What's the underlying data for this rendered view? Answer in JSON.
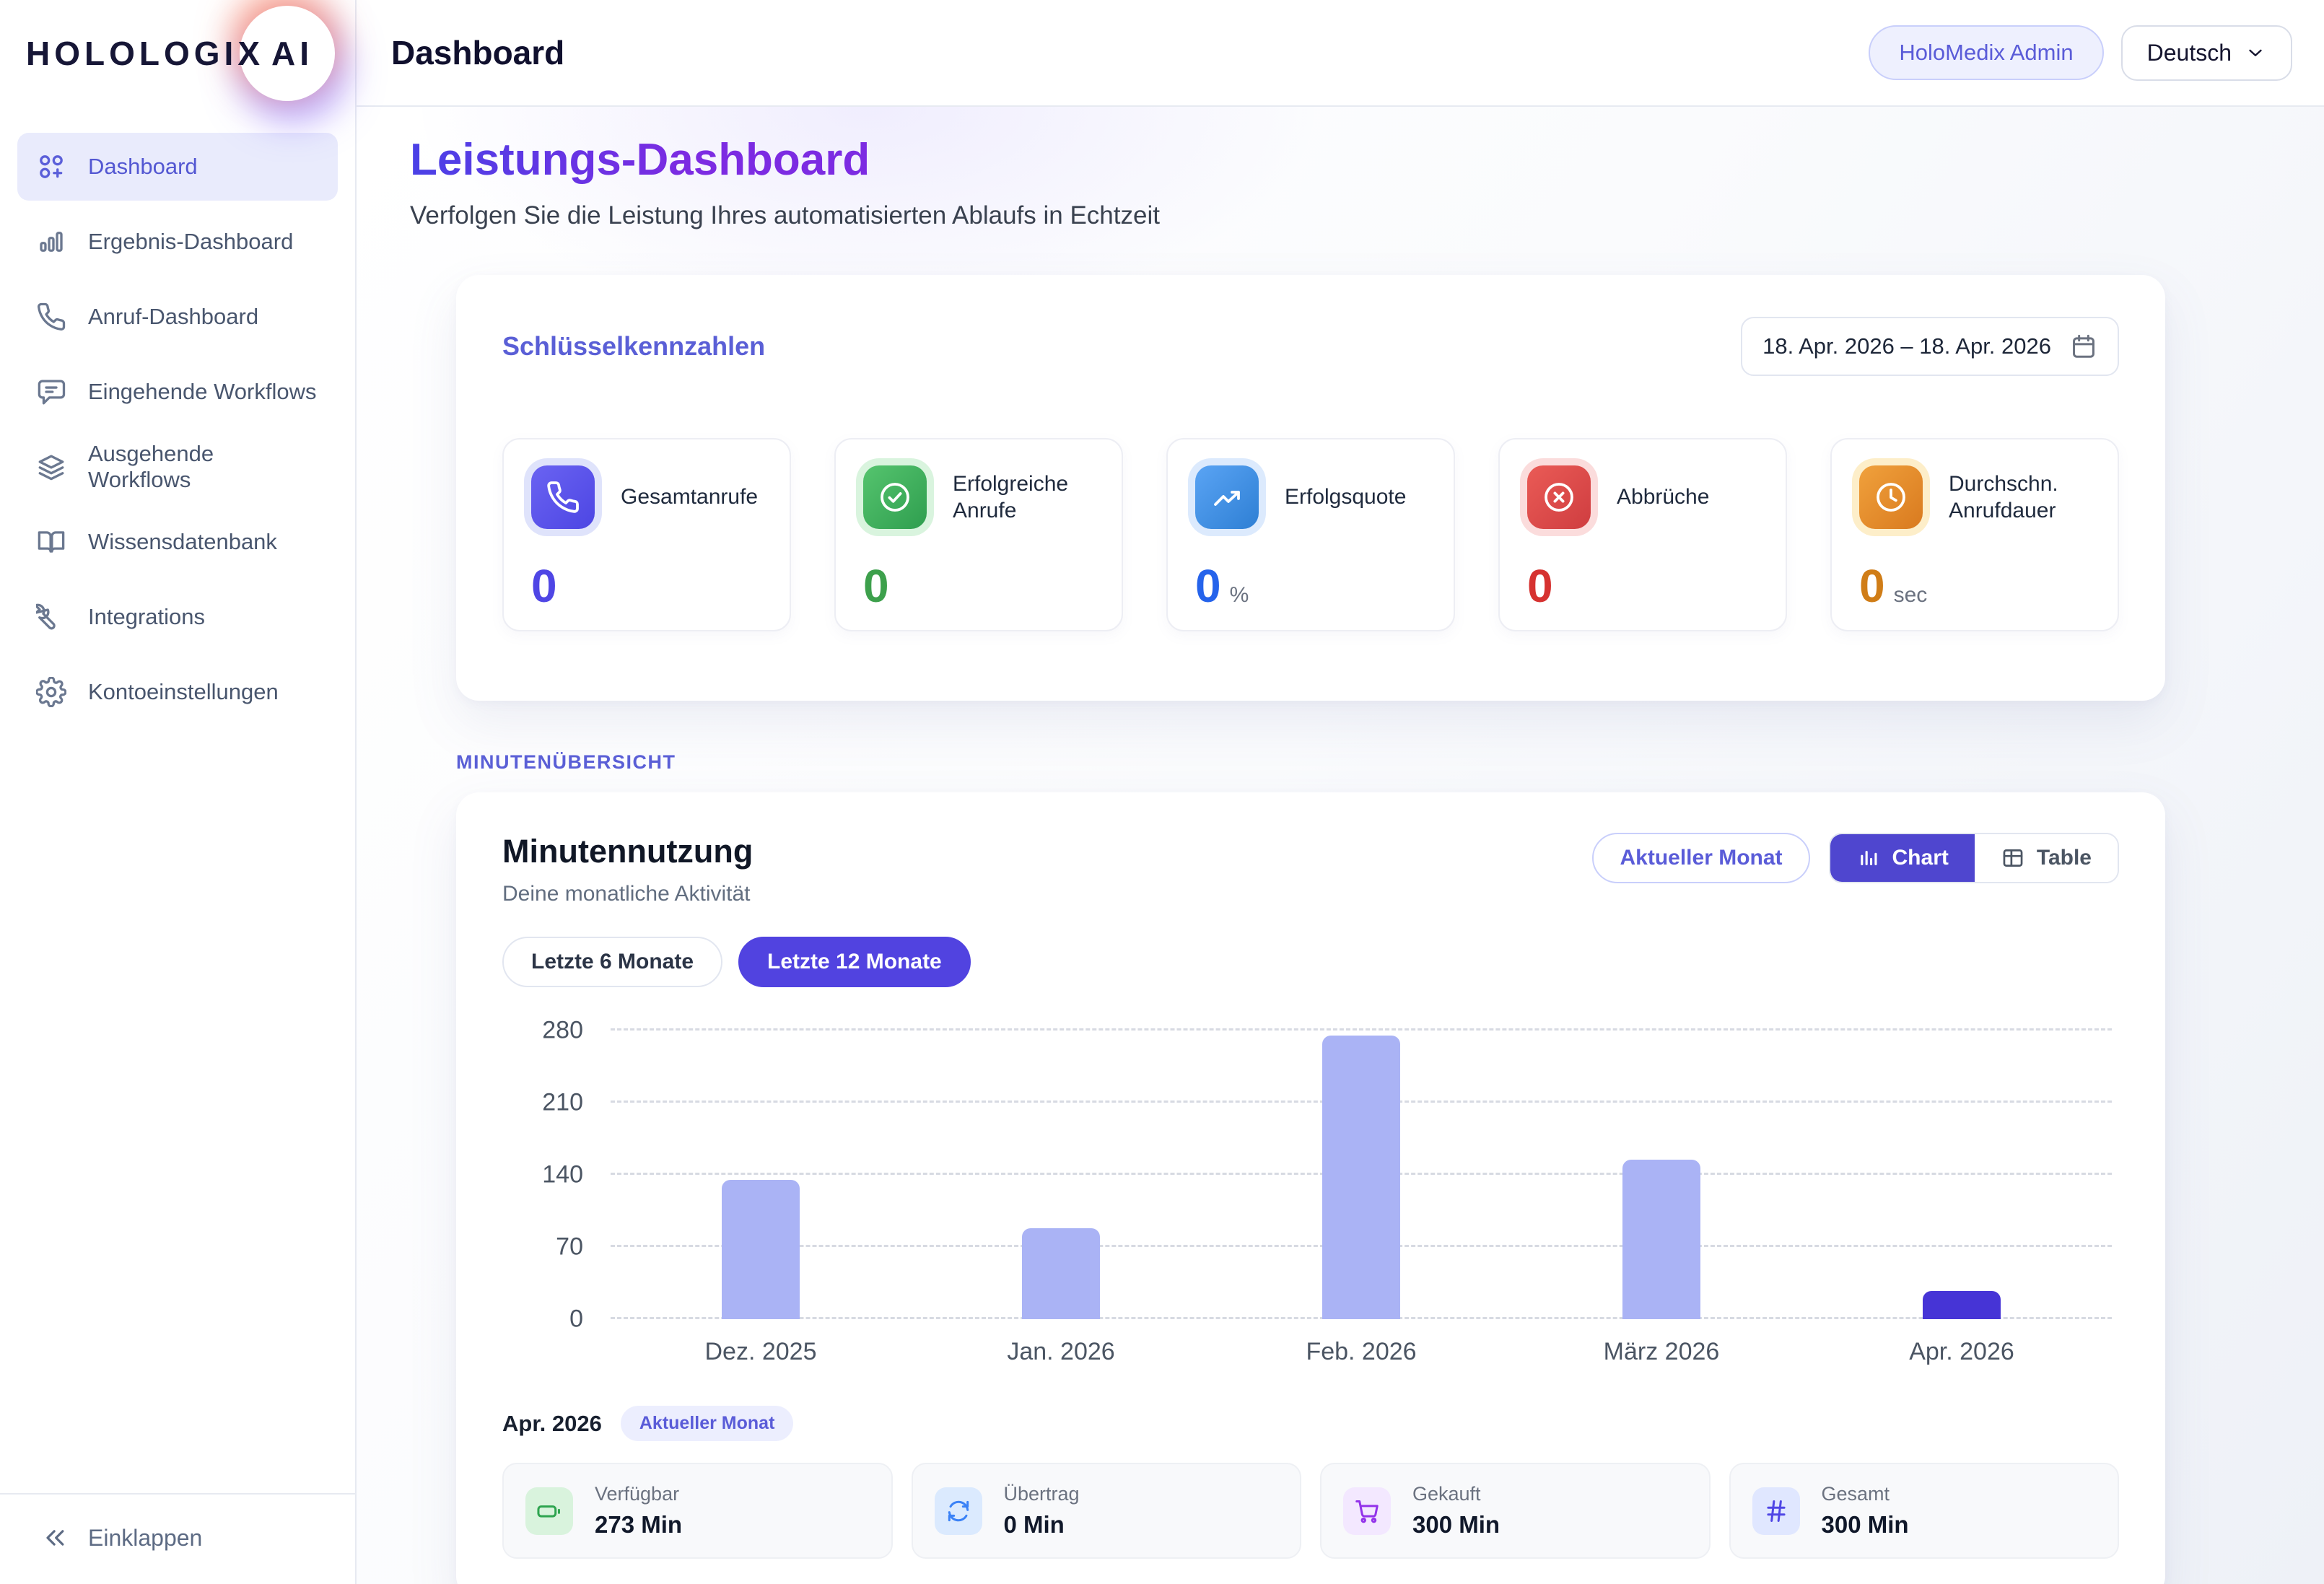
{
  "logo": {
    "text": "HOLOLOGIX",
    "suffix": "AI"
  },
  "header": {
    "title": "Dashboard",
    "account_badge": "HoloMedix Admin",
    "language": "Deutsch"
  },
  "sidebar": {
    "items": [
      {
        "label": "Dashboard",
        "icon": "apps",
        "active": true
      },
      {
        "label": "Ergebnis-Dashboard",
        "icon": "bars",
        "active": false
      },
      {
        "label": "Anruf-Dashboard",
        "icon": "phone",
        "active": false
      },
      {
        "label": "Eingehende Workflows",
        "icon": "chat",
        "active": false
      },
      {
        "label": "Ausgehende Workflows",
        "icon": "layers",
        "active": false
      },
      {
        "label": "Wissensdatenbank",
        "icon": "book",
        "active": false
      },
      {
        "label": "Integrations",
        "icon": "wrench",
        "active": false
      },
      {
        "label": "Kontoeinstellungen",
        "icon": "gear",
        "active": false
      }
    ],
    "collapse_label": "Einklappen"
  },
  "page": {
    "title": "Leistungs-Dashboard",
    "subtitle": "Verfolgen Sie die Leistung Ihres automatisierten Ablaufs in Echtzeit"
  },
  "key_metrics": {
    "title": "Schlüsselkennzahlen",
    "date_range": "18. Apr. 2026 – 18. Apr. 2026",
    "cards": [
      {
        "label": "Gesamtanrufe",
        "value": "0",
        "unit": "",
        "icon": "phone-solid",
        "value_color": "#4f46e5",
        "tile_bg": "linear-gradient(135deg,#6a63f2,#4d46e3)",
        "ring": "#dfe3fb"
      },
      {
        "label": "Erfolgreiche Anrufe",
        "value": "0",
        "unit": "",
        "icon": "check-circle",
        "value_color": "#3da04c",
        "tile_bg": "linear-gradient(135deg,#55c46e,#2f9e4f)",
        "ring": "#d9f4de"
      },
      {
        "label": "Erfolgsquote",
        "value": "0",
        "unit": "%",
        "icon": "trend-up",
        "value_color": "#2563eb",
        "tile_bg": "linear-gradient(135deg,#5aa4f4,#2e7fd4)",
        "ring": "#dceafd"
      },
      {
        "label": "Abbrüche",
        "value": "0",
        "unit": "",
        "icon": "x-circle",
        "value_color": "#d63230",
        "tile_bg": "linear-gradient(135deg,#ea5b56,#cf3d40)",
        "ring": "#fbdcdc"
      },
      {
        "label": "Durchschn. Anrufdauer",
        "value": "0",
        "unit": "sec",
        "icon": "clock",
        "value_color": "#d07d17",
        "tile_bg": "linear-gradient(135deg,#f0a13c,#d97a1f)",
        "ring": "#fdeec9"
      }
    ]
  },
  "minutes": {
    "eyebrow": "MINUTENÜBERSICHT",
    "title": "Minutennutzung",
    "subtitle": "Deine monatliche Aktivität",
    "current_month_button": "Aktueller Monat",
    "view_toggle": [
      {
        "label": "Chart",
        "icon": "chart-bars",
        "active": true
      },
      {
        "label": "Table",
        "icon": "table-grid",
        "active": false
      }
    ],
    "filters": [
      {
        "label": "Letzte 6 Monate",
        "active": false
      },
      {
        "label": "Letzte 12 Monate",
        "active": true
      }
    ],
    "footer": {
      "month": "Apr. 2026",
      "badge": "Aktueller Monat",
      "tiles": [
        {
          "label": "Verfügbar",
          "value": "273 Min",
          "icon": "battery",
          "icon_color": "#2ea44f",
          "icon_bg": "#d9f3dd"
        },
        {
          "label": "Übertrag",
          "value": "0 Min",
          "icon": "refresh",
          "icon_color": "#3b82f6",
          "icon_bg": "#dbeafe"
        },
        {
          "label": "Gekauft",
          "value": "300 Min",
          "icon": "cart",
          "icon_color": "#9333ea",
          "icon_bg": "#f3e8ff"
        },
        {
          "label": "Gesamt",
          "value": "300 Min",
          "icon": "hash",
          "icon_color": "#4f46e5",
          "icon_bg": "#e0e7ff"
        }
      ]
    }
  },
  "chart_data": {
    "type": "bar",
    "categories": [
      "Dez. 2025",
      "Jan. 2026",
      "Feb. 2026",
      "März 2026",
      "Apr. 2026"
    ],
    "values": [
      135,
      88,
      275,
      155,
      27
    ],
    "title": "Minutennutzung",
    "xlabel": "",
    "ylabel": "",
    "ylim": [
      0,
      280
    ],
    "yticks": [
      0,
      70,
      140,
      210,
      280
    ],
    "grid": "dashed-horizontal",
    "legend": "none",
    "bar_color": "#aab3f5",
    "highlight_index": 4,
    "highlight_color": "#4634d6"
  }
}
